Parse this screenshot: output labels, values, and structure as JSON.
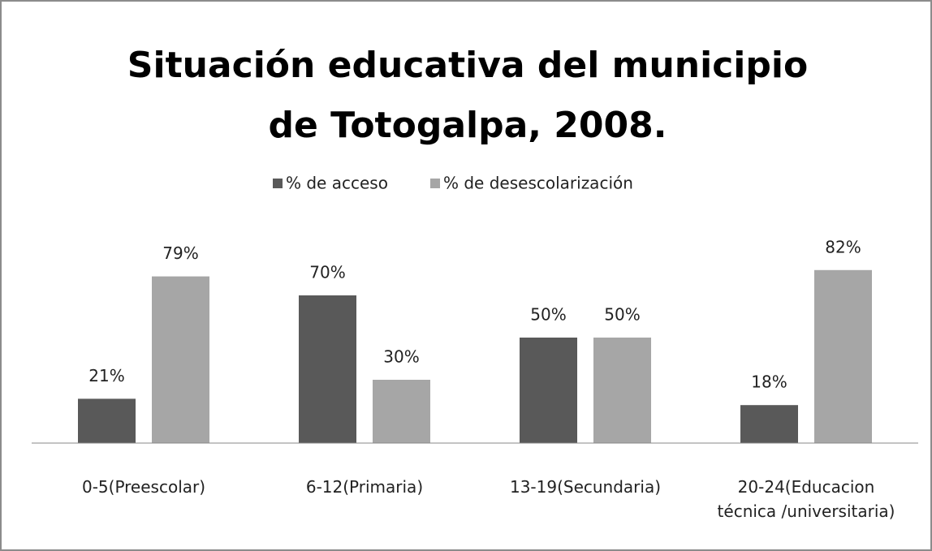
{
  "chart_data": {
    "type": "bar",
    "title": "Situación educativa del municipio de Totogalpa, 2008.",
    "categories": [
      "0-5(Preescolar)",
      "6-12(Primaria)",
      "13-19(Secundaria)",
      "20-24(Educacion técnica /universitaria)"
    ],
    "series": [
      {
        "name": "% de acceso",
        "color": "#595959",
        "values": [
          21,
          70,
          50,
          18
        ],
        "value_labels": [
          "21%",
          "70%",
          "50%",
          "18%"
        ]
      },
      {
        "name": "% de desescolarización",
        "color": "#a6a6a6",
        "values": [
          79,
          30,
          50,
          82
        ],
        "value_labels": [
          "79%",
          "30%",
          "50%",
          "82%"
        ]
      }
    ],
    "ylim": [
      0,
      100
    ],
    "legend": "top"
  }
}
